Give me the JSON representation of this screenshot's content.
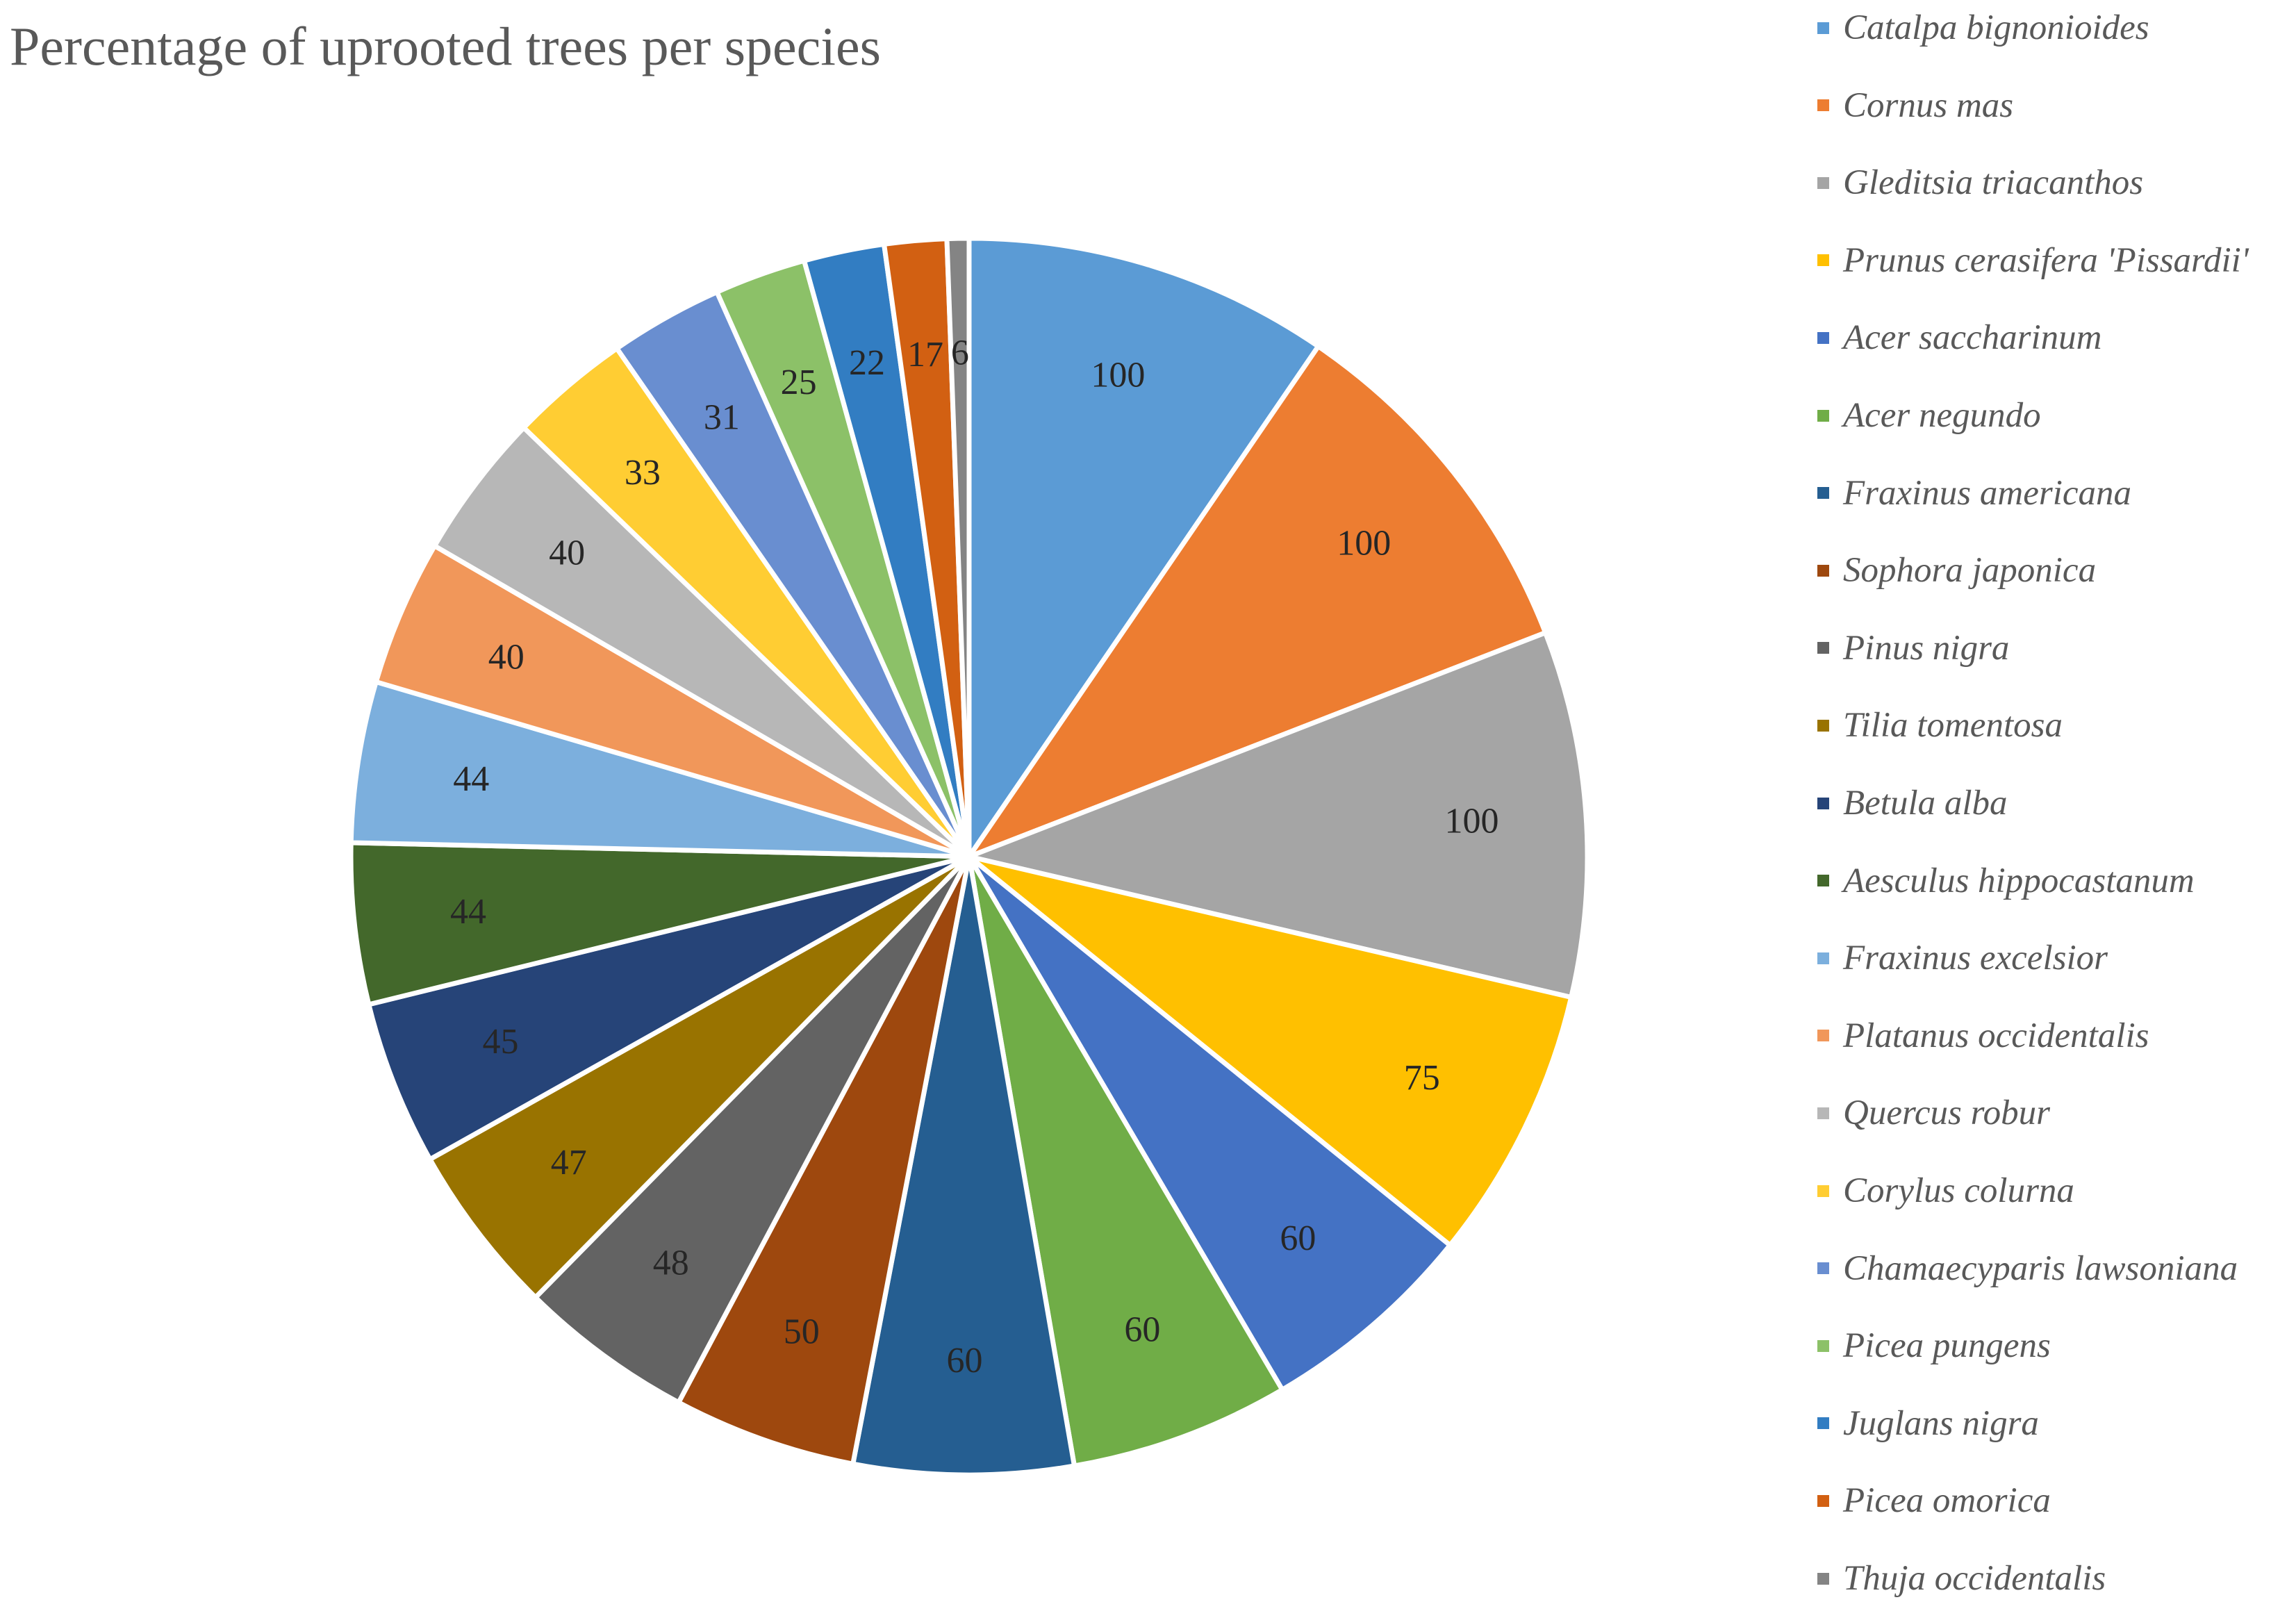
{
  "chart_data": {
    "type": "pie",
    "title": "Percentage of uprooted trees per species",
    "legend_position": "right",
    "series": [
      {
        "name": "Catalpa bignonioides",
        "value": 100,
        "color": "#5B9BD5"
      },
      {
        "name": "Cornus mas",
        "value": 100,
        "color": "#ED7D31"
      },
      {
        "name": "Gleditsia triacanthos",
        "value": 100,
        "color": "#A5A5A5"
      },
      {
        "name": "Prunus cerasifera 'Pissardii'",
        "value": 75,
        "color": "#FFC000"
      },
      {
        "name": "Acer saccharinum",
        "value": 60,
        "color": "#4472C4"
      },
      {
        "name": "Acer negundo",
        "value": 60,
        "color": "#70AD47"
      },
      {
        "name": "Fraxinus americana",
        "value": 60,
        "color": "#255E91"
      },
      {
        "name": "Sophora japonica",
        "value": 50,
        "color": "#9E480E"
      },
      {
        "name": "Pinus nigra",
        "value": 48,
        "color": "#636363"
      },
      {
        "name": "Tilia tomentosa",
        "value": 47,
        "color": "#997300"
      },
      {
        "name": "Betula alba",
        "value": 45,
        "color": "#264478"
      },
      {
        "name": "Aesculus hippocastanum",
        "value": 44,
        "color": "#43682B"
      },
      {
        "name": "Fraxinus excelsior",
        "value": 44,
        "color": "#7CAFDD"
      },
      {
        "name": "Platanus occidentalis",
        "value": 40,
        "color": "#F1975A"
      },
      {
        "name": "Quercus robur",
        "value": 40,
        "color": "#B7B7B7"
      },
      {
        "name": "Corylus colurna",
        "value": 33,
        "color": "#FFCD33"
      },
      {
        "name": "Chamaecyparis lawsoniana",
        "value": 31,
        "color": "#698ED0"
      },
      {
        "name": "Picea pungens",
        "value": 25,
        "color": "#8CC168"
      },
      {
        "name": "Juglans nigra",
        "value": 22,
        "color": "#327DC2"
      },
      {
        "name": "Picea omorica",
        "value": 17,
        "color": "#D26012"
      },
      {
        "name": "Thuja occidentalis",
        "value": 6,
        "color": "#848484"
      }
    ]
  }
}
